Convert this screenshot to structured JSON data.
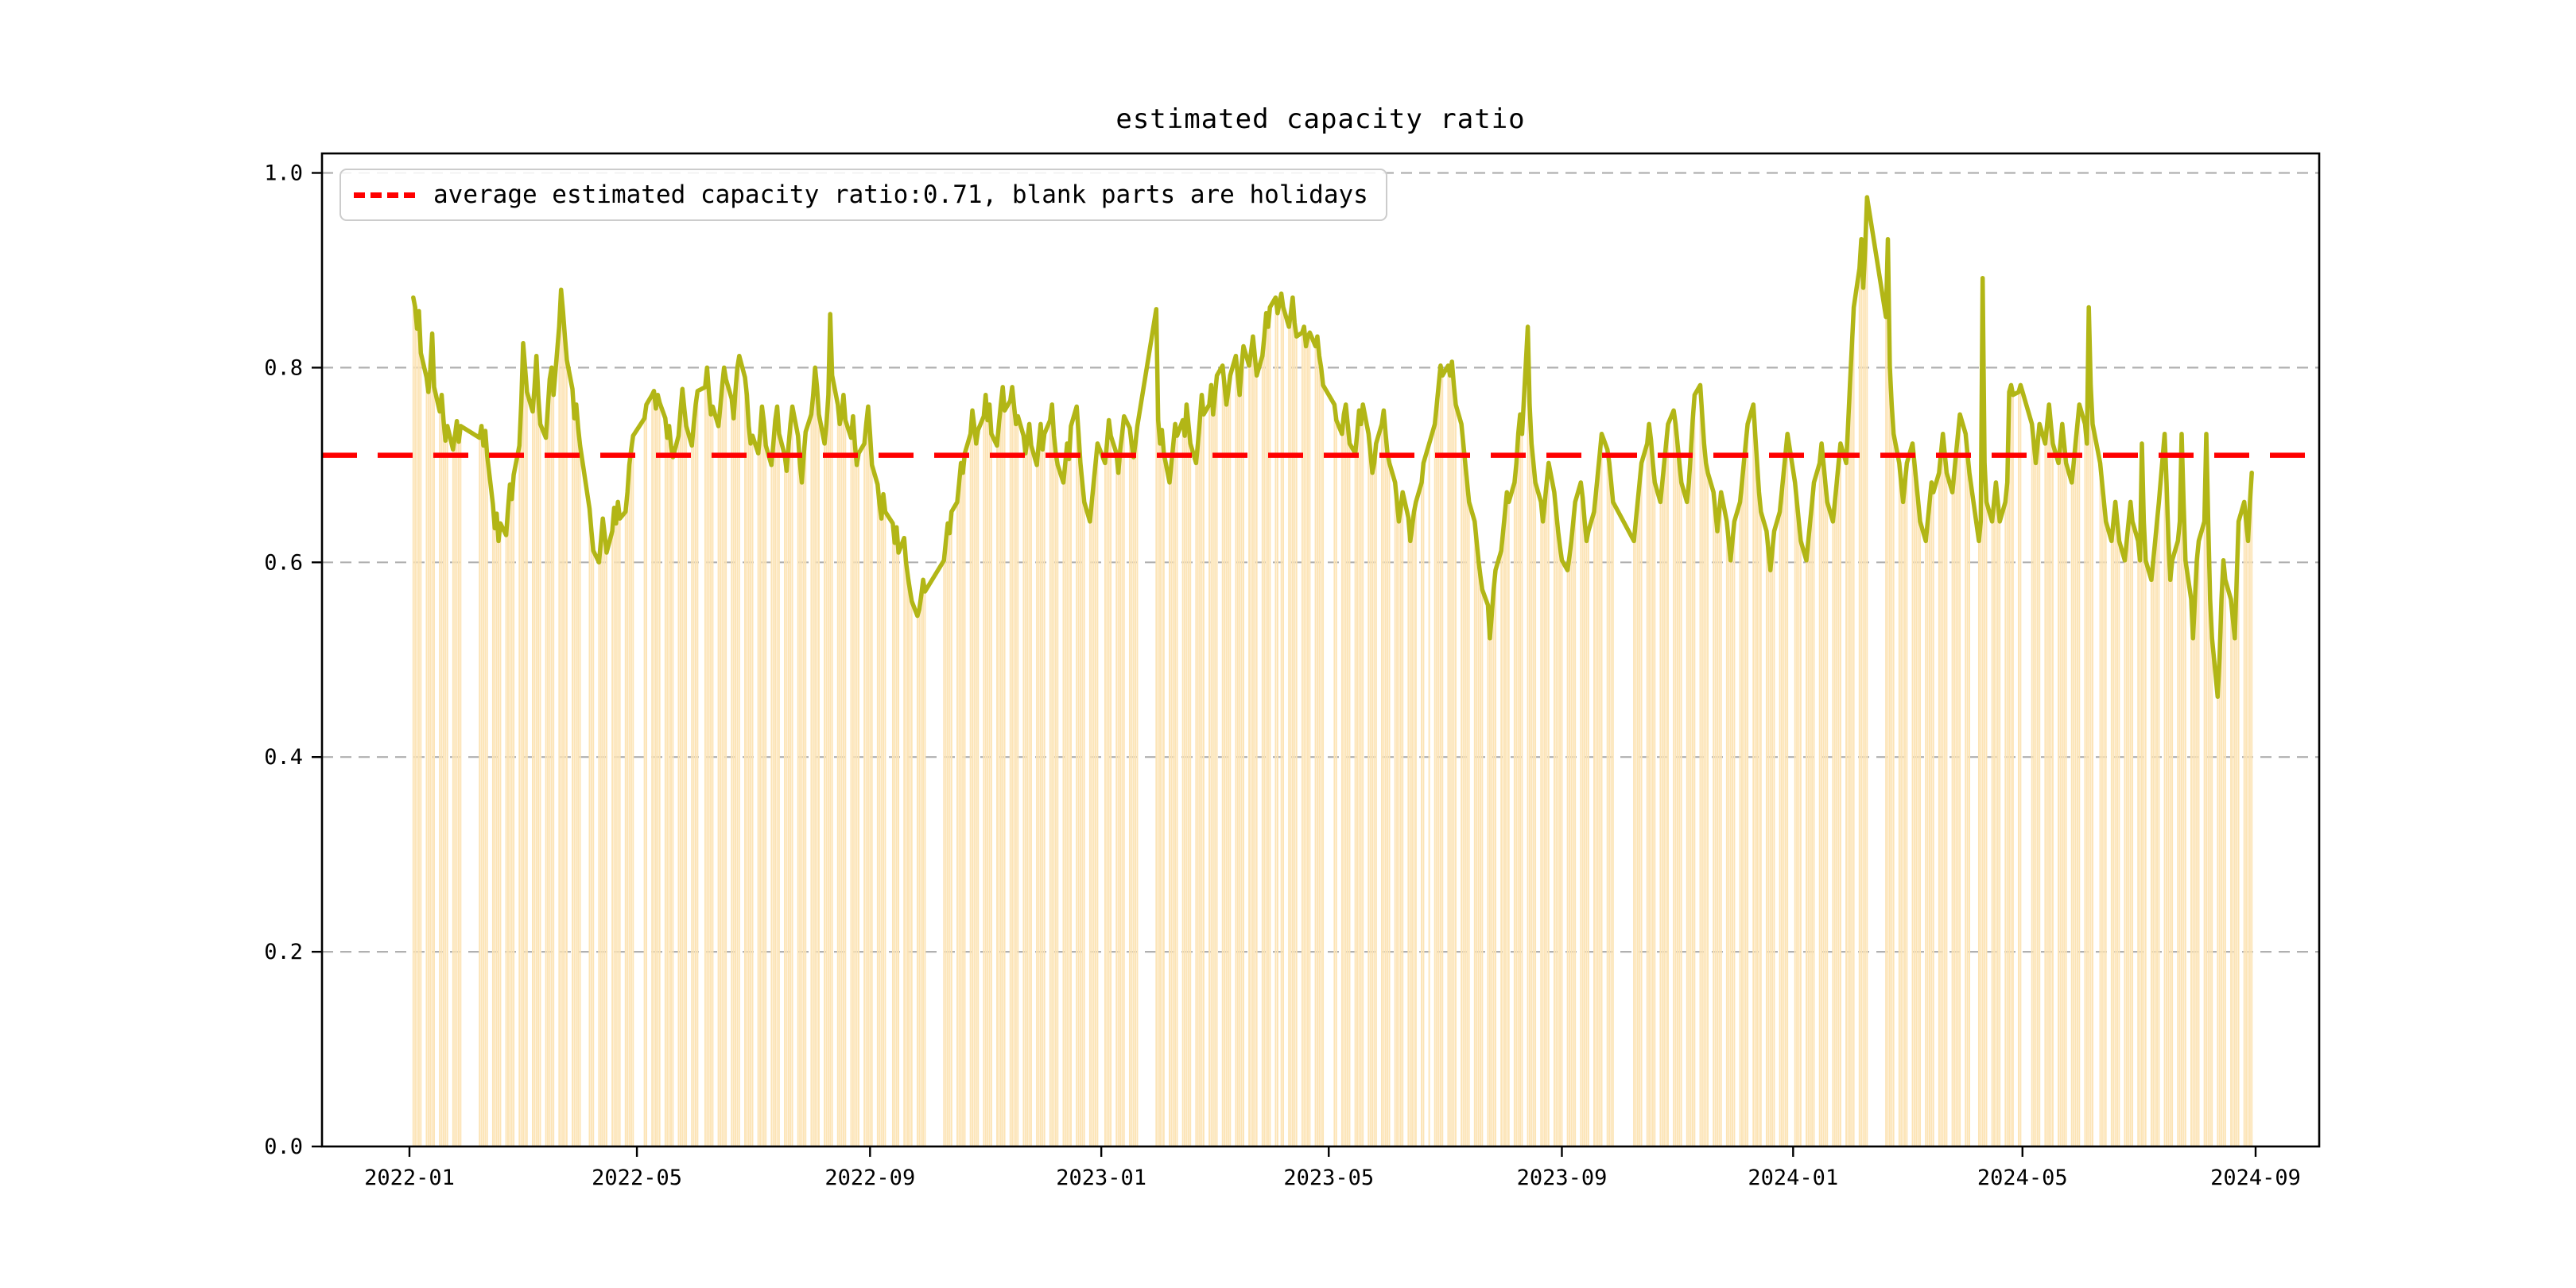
{
  "chart_data": {
    "type": "bar+line",
    "title": "estimated capacity ratio",
    "legend_label": "average estimated capacity ratio:0.71, blank parts are holidays",
    "legend_position": "upper left",
    "average_estimated_capacity_ratio": 0.71,
    "xlabel": "",
    "ylabel": "",
    "ylim": [
      0,
      1.02
    ],
    "grid": "horizontal dashed gridlines at each y tick",
    "holidays_note": "blank parts are holidays",
    "colors": {
      "bar_fill": "#fce4b6",
      "line": "#b2b616",
      "average_line": "#ff0000",
      "grid": "#b0b0b0",
      "axis": "#000000",
      "legend_border": "#cccccc"
    },
    "yticks": [
      {
        "label": "0.0",
        "value": 0.0
      },
      {
        "label": "0.2",
        "value": 0.2
      },
      {
        "label": "0.4",
        "value": 0.4
      },
      {
        "label": "0.6",
        "value": 0.6
      },
      {
        "label": "0.8",
        "value": 0.8
      },
      {
        "label": "1.0",
        "value": 1.0
      }
    ],
    "xticks": [
      {
        "label": "2022-01",
        "date": "2022-01-01"
      },
      {
        "label": "2022-05",
        "date": "2022-05-01"
      },
      {
        "label": "2022-09",
        "date": "2022-09-01"
      },
      {
        "label": "2023-01",
        "date": "2023-01-01"
      },
      {
        "label": "2023-05",
        "date": "2023-05-01"
      },
      {
        "label": "2023-09",
        "date": "2023-09-01"
      },
      {
        "label": "2024-01",
        "date": "2024-01-01"
      },
      {
        "label": "2024-05",
        "date": "2024-05-01"
      },
      {
        "label": "2024-09",
        "date": "2024-09-01"
      }
    ],
    "series": {
      "name": "estimated capacity ratio",
      "frequency": "business days (Mon-Fri), null = holiday (blank)",
      "weeks_format": [
        "week_start_monday",
        "mon",
        "tue",
        "wed",
        "thu",
        "fri"
      ],
      "weeks": [
        [
          "2022-01-03",
          0.872,
          0.862,
          0.84,
          0.858,
          0.815
        ],
        [
          "2022-01-10",
          0.79,
          0.775,
          0.798,
          0.835,
          0.78
        ],
        [
          "2022-01-17",
          0.755,
          0.772,
          0.745,
          0.725,
          0.74
        ],
        [
          "2022-01-24",
          0.716,
          0.73,
          0.745,
          0.724,
          0.74
        ],
        [
          "2022-01-31",
          null,
          null,
          null,
          null,
          null
        ],
        [
          "2022-02-07",
          0.728,
          0.74,
          0.72,
          0.735,
          0.71
        ],
        [
          "2022-02-14",
          0.66,
          0.635,
          0.65,
          0.622,
          0.64
        ],
        [
          "2022-02-21",
          0.628,
          0.655,
          0.68,
          0.665,
          0.69
        ],
        [
          "2022-02-28",
          0.72,
          0.765,
          0.825,
          0.8,
          0.775
        ],
        [
          "2022-03-07",
          0.755,
          0.78,
          0.812,
          0.77,
          0.742
        ],
        [
          "2022-03-14",
          0.728,
          0.758,
          0.788,
          0.8,
          0.772
        ],
        [
          "2022-03-21",
          0.842,
          0.88,
          0.858,
          0.832,
          0.808
        ],
        [
          "2022-03-28",
          0.778,
          0.748,
          0.762,
          0.738,
          0.72
        ],
        [
          "2022-04-04",
          null,
          null,
          0.655,
          0.632,
          0.612
        ],
        [
          "2022-04-11",
          0.6,
          0.622,
          0.645,
          0.628,
          0.61
        ],
        [
          "2022-04-18",
          0.632,
          0.656,
          0.64,
          0.662,
          0.645
        ],
        [
          "2022-04-25",
          0.652,
          0.672,
          0.7,
          0.716,
          0.73
        ],
        [
          "2022-05-02",
          null,
          null,
          null,
          0.748,
          0.762
        ],
        [
          "2022-05-09",
          0.772,
          0.776,
          0.758,
          0.772,
          0.764
        ],
        [
          "2022-05-16",
          0.748,
          0.728,
          0.74,
          0.72,
          0.708
        ],
        [
          "2022-05-23",
          0.73,
          0.755,
          0.778,
          0.758,
          0.74
        ],
        [
          "2022-05-30",
          0.72,
          0.742,
          0.762,
          0.776,
          null
        ],
        [
          "2022-06-06",
          0.78,
          0.8,
          0.774,
          0.752,
          0.76
        ],
        [
          "2022-06-13",
          0.74,
          0.76,
          0.782,
          0.8,
          0.788
        ],
        [
          "2022-06-20",
          0.768,
          0.748,
          0.776,
          0.8,
          0.812
        ],
        [
          "2022-06-27",
          0.79,
          0.772,
          0.74,
          0.722,
          0.73
        ],
        [
          "2022-07-04",
          0.712,
          0.732,
          0.76,
          0.744,
          0.72
        ],
        [
          "2022-07-11",
          0.7,
          0.722,
          0.746,
          0.76,
          0.732
        ],
        [
          "2022-07-18",
          0.71,
          0.694,
          0.72,
          0.742,
          0.76
        ],
        [
          "2022-07-25",
          0.73,
          0.702,
          0.682,
          0.71,
          0.734
        ],
        [
          "2022-08-01",
          0.752,
          0.772,
          0.8,
          0.78,
          0.752
        ],
        [
          "2022-08-08",
          0.722,
          0.742,
          0.772,
          0.855,
          0.792
        ],
        [
          "2022-08-15",
          0.762,
          0.742,
          0.752,
          0.772,
          0.746
        ],
        [
          "2022-08-22",
          0.728,
          0.75,
          0.722,
          0.7,
          0.712
        ],
        [
          "2022-08-29",
          0.722,
          0.742,
          0.76,
          0.732,
          0.7
        ],
        [
          "2022-09-05",
          0.68,
          0.66,
          0.645,
          0.67,
          0.652
        ],
        [
          "2022-09-12",
          null,
          0.64,
          0.62,
          0.636,
          0.61
        ],
        [
          "2022-09-19",
          0.625,
          0.6,
          0.585,
          0.572,
          0.56
        ],
        [
          "2022-09-26",
          0.545,
          0.552,
          0.566,
          0.582,
          0.57
        ],
        [
          "2022-10-03",
          null,
          null,
          null,
          null,
          null
        ],
        [
          "2022-10-10",
          0.602,
          0.622,
          0.64,
          0.63,
          0.652
        ],
        [
          "2022-10-17",
          0.662,
          0.682,
          0.702,
          0.692,
          0.712
        ],
        [
          "2022-10-24",
          0.732,
          0.756,
          0.74,
          0.722,
          0.736
        ],
        [
          "2022-10-31",
          0.75,
          0.772,
          0.746,
          0.762,
          0.732
        ],
        [
          "2022-11-07",
          0.72,
          0.742,
          0.762,
          0.78,
          0.756
        ],
        [
          "2022-11-14",
          0.766,
          0.78,
          0.76,
          0.742,
          0.75
        ],
        [
          "2022-11-21",
          0.73,
          0.712,
          0.726,
          0.742,
          0.72
        ],
        [
          "2022-11-28",
          0.7,
          0.722,
          0.742,
          0.716,
          0.732
        ],
        [
          "2022-12-05",
          0.746,
          0.762,
          0.73,
          0.712,
          0.7
        ],
        [
          "2022-12-12",
          0.682,
          0.702,
          0.722,
          0.706,
          0.74
        ],
        [
          "2022-12-19",
          0.76,
          0.732,
          0.702,
          0.682,
          0.662
        ],
        [
          "2022-12-26",
          0.642,
          0.662,
          0.682,
          0.702,
          0.722
        ],
        [
          "2023-01-02",
          null,
          0.702,
          0.722,
          0.746,
          0.73
        ],
        [
          "2023-01-09",
          0.712,
          0.692,
          0.716,
          0.732,
          0.75
        ],
        [
          "2023-01-16",
          0.738,
          0.722,
          0.708,
          0.722,
          0.74
        ],
        [
          "2023-01-23",
          null,
          null,
          null,
          null,
          null
        ],
        [
          "2023-01-30",
          0.86,
          0.746,
          0.722,
          0.736,
          0.712
        ],
        [
          "2023-02-06",
          0.682,
          0.702,
          0.722,
          0.742,
          0.73
        ],
        [
          "2023-02-13",
          0.746,
          0.73,
          0.762,
          0.742,
          0.722
        ],
        [
          "2023-02-20",
          0.702,
          0.722,
          0.746,
          0.772,
          0.752
        ],
        [
          "2023-02-27",
          0.762,
          0.782,
          0.752,
          0.772,
          0.792
        ],
        [
          "2023-03-06",
          0.802,
          0.782,
          0.762,
          0.776,
          0.792
        ],
        [
          "2023-03-13",
          0.812,
          0.792,
          0.772,
          0.802,
          0.822
        ],
        [
          "2023-03-20",
          0.802,
          0.816,
          0.832,
          0.812,
          0.792
        ],
        [
          "2023-03-27",
          0.812,
          0.832,
          0.856,
          0.842,
          0.862
        ],
        [
          "2023-04-03",
          0.872,
          0.856,
          null,
          0.876,
          0.862
        ],
        [
          "2023-04-10",
          0.842,
          0.856,
          0.872,
          0.846,
          0.832
        ],
        [
          "2023-04-17",
          0.836,
          0.842,
          0.822,
          0.832,
          0.836
        ],
        [
          "2023-04-24",
          0.822,
          0.832,
          0.812,
          0.8,
          0.782
        ],
        [
          "2023-05-01",
          null,
          null,
          null,
          0.762,
          0.746
        ],
        [
          "2023-05-08",
          0.732,
          0.752,
          0.762,
          0.742,
          0.722
        ],
        [
          "2023-05-15",
          0.712,
          0.732,
          0.756,
          0.742,
          0.762
        ],
        [
          "2023-05-22",
          0.732,
          0.712,
          0.692,
          0.702,
          0.722
        ],
        [
          "2023-05-29",
          0.742,
          0.756,
          0.732,
          0.712,
          0.702
        ],
        [
          "2023-06-05",
          0.682,
          0.662,
          0.642,
          0.656,
          0.672
        ],
        [
          "2023-06-12",
          0.646,
          0.622,
          0.636,
          0.652,
          0.662
        ],
        [
          "2023-06-19",
          0.682,
          0.702,
          null,
          null,
          0.722
        ],
        [
          "2023-06-26",
          0.742,
          0.762,
          0.782,
          0.802,
          0.792
        ],
        [
          "2023-07-03",
          0.802,
          0.792,
          0.806,
          0.782,
          0.762
        ],
        [
          "2023-07-10",
          0.742,
          0.722,
          0.702,
          0.682,
          0.662
        ],
        [
          "2023-07-17",
          0.642,
          0.622,
          0.602,
          0.586,
          0.572
        ],
        [
          "2023-07-24",
          0.556,
          0.522,
          0.546,
          0.572,
          0.592
        ],
        [
          "2023-07-31",
          0.612,
          0.632,
          0.652,
          0.672,
          0.662
        ],
        [
          "2023-08-07",
          0.682,
          0.702,
          0.732,
          0.752,
          0.732
        ],
        [
          "2023-08-14",
          0.842,
          0.762,
          0.722,
          0.702,
          0.682
        ],
        [
          "2023-08-21",
          0.662,
          0.642,
          0.662,
          0.682,
          0.702
        ],
        [
          "2023-08-28",
          0.672,
          0.652,
          0.632,
          0.616,
          0.602
        ],
        [
          "2023-09-04",
          0.592,
          0.606,
          0.622,
          0.642,
          0.662
        ],
        [
          "2023-09-11",
          0.682,
          0.666,
          0.642,
          0.622,
          0.632
        ],
        [
          "2023-09-18",
          0.652,
          0.672,
          0.692,
          0.712,
          0.732
        ],
        [
          "2023-09-25",
          0.716,
          0.702,
          0.682,
          0.662,
          null
        ],
        [
          "2023-10-02",
          null,
          null,
          null,
          null,
          null
        ],
        [
          "2023-10-09",
          0.622,
          0.642,
          0.662,
          0.682,
          0.702
        ],
        [
          "2023-10-16",
          0.722,
          0.742,
          0.726,
          0.702,
          0.682
        ],
        [
          "2023-10-23",
          0.662,
          0.682,
          0.702,
          0.722,
          0.742
        ],
        [
          "2023-10-30",
          0.756,
          0.742,
          0.722,
          0.702,
          0.682
        ],
        [
          "2023-11-06",
          0.662,
          0.682,
          0.712,
          0.746,
          0.772
        ],
        [
          "2023-11-13",
          0.782,
          0.752,
          0.722,
          0.702,
          0.692
        ],
        [
          "2023-11-20",
          0.672,
          0.652,
          0.632,
          0.652,
          0.672
        ],
        [
          "2023-11-27",
          0.642,
          0.622,
          0.602,
          0.622,
          0.642
        ],
        [
          "2023-12-04",
          0.662,
          0.682,
          0.702,
          0.722,
          0.742
        ],
        [
          "2023-12-11",
          0.762,
          0.732,
          0.702,
          0.672,
          0.652
        ],
        [
          "2023-12-18",
          0.632,
          0.612,
          0.592,
          0.612,
          0.632
        ],
        [
          "2023-12-25",
          0.652,
          0.672,
          0.692,
          0.712,
          0.732
        ],
        [
          "2024-01-01",
          null,
          0.682,
          0.662,
          0.642,
          0.622
        ],
        [
          "2024-01-08",
          0.602,
          0.622,
          0.642,
          0.662,
          0.682
        ],
        [
          "2024-01-15",
          0.702,
          0.722,
          0.702,
          0.682,
          0.662
        ],
        [
          "2024-01-22",
          0.642,
          0.662,
          0.682,
          0.702,
          0.722
        ],
        [
          "2024-01-29",
          0.702,
          0.742,
          0.782,
          0.822,
          0.862
        ],
        [
          "2024-02-05",
          0.902,
          0.932,
          0.882,
          0.922,
          0.975
        ],
        [
          "2024-02-12",
          null,
          null,
          null,
          null,
          null
        ],
        [
          "2024-02-19",
          0.852,
          0.932,
          0.802,
          0.762,
          0.732
        ],
        [
          "2024-02-26",
          0.702,
          0.682,
          0.662,
          0.682,
          0.702
        ],
        [
          "2024-03-04",
          0.722,
          0.702,
          0.682,
          0.662,
          0.642
        ],
        [
          "2024-03-11",
          0.622,
          0.642,
          0.662,
          0.682,
          0.672
        ],
        [
          "2024-03-18",
          0.692,
          0.712,
          0.732,
          0.712,
          0.692
        ],
        [
          "2024-03-25",
          0.672,
          0.692,
          0.712,
          0.732,
          0.752
        ],
        [
          "2024-04-01",
          0.732,
          0.712,
          0.692,
          null,
          null
        ],
        [
          "2024-04-08",
          0.622,
          0.642,
          0.892,
          0.702,
          0.662
        ],
        [
          "2024-04-15",
          0.642,
          0.662,
          0.682,
          0.662,
          0.642
        ],
        [
          "2024-04-22",
          0.662,
          0.682,
          0.775,
          0.782,
          0.772
        ],
        [
          "2024-04-29",
          0.775,
          0.782,
          null,
          null,
          null
        ],
        [
          "2024-05-06",
          0.742,
          0.722,
          0.702,
          0.722,
          0.742
        ],
        [
          "2024-05-13",
          0.722,
          0.742,
          0.762,
          0.742,
          0.722
        ],
        [
          "2024-05-20",
          0.702,
          0.722,
          0.742,
          0.722,
          0.702
        ],
        [
          "2024-05-27",
          0.682,
          0.702,
          0.722,
          0.742,
          0.762
        ],
        [
          "2024-06-03",
          0.742,
          0.722,
          0.862,
          0.782,
          0.742
        ],
        [
          "2024-06-10",
          null,
          0.702,
          0.682,
          0.662,
          0.642
        ],
        [
          "2024-06-17",
          0.622,
          0.642,
          0.662,
          0.642,
          0.622
        ],
        [
          "2024-06-24",
          0.602,
          0.622,
          0.642,
          0.662,
          0.642
        ],
        [
          "2024-07-01",
          0.622,
          0.602,
          0.722,
          0.642,
          0.602
        ],
        [
          "2024-07-08",
          0.582,
          0.602,
          0.622,
          0.642,
          0.662
        ],
        [
          "2024-07-15",
          0.732,
          0.682,
          0.622,
          0.582,
          0.602
        ],
        [
          "2024-07-22",
          0.622,
          0.642,
          0.732,
          0.662,
          0.602
        ],
        [
          "2024-07-29",
          0.562,
          0.522,
          0.562,
          0.602,
          0.622
        ],
        [
          "2024-08-05",
          0.642,
          0.732,
          0.642,
          0.562,
          0.522
        ],
        [
          "2024-08-12",
          0.462,
          0.502,
          0.562,
          0.602,
          0.582
        ],
        [
          "2024-08-19",
          0.562,
          0.542,
          0.522,
          0.582,
          0.642
        ],
        [
          "2024-08-26",
          0.662,
          0.642,
          0.622,
          0.662,
          0.692
        ]
      ]
    }
  }
}
